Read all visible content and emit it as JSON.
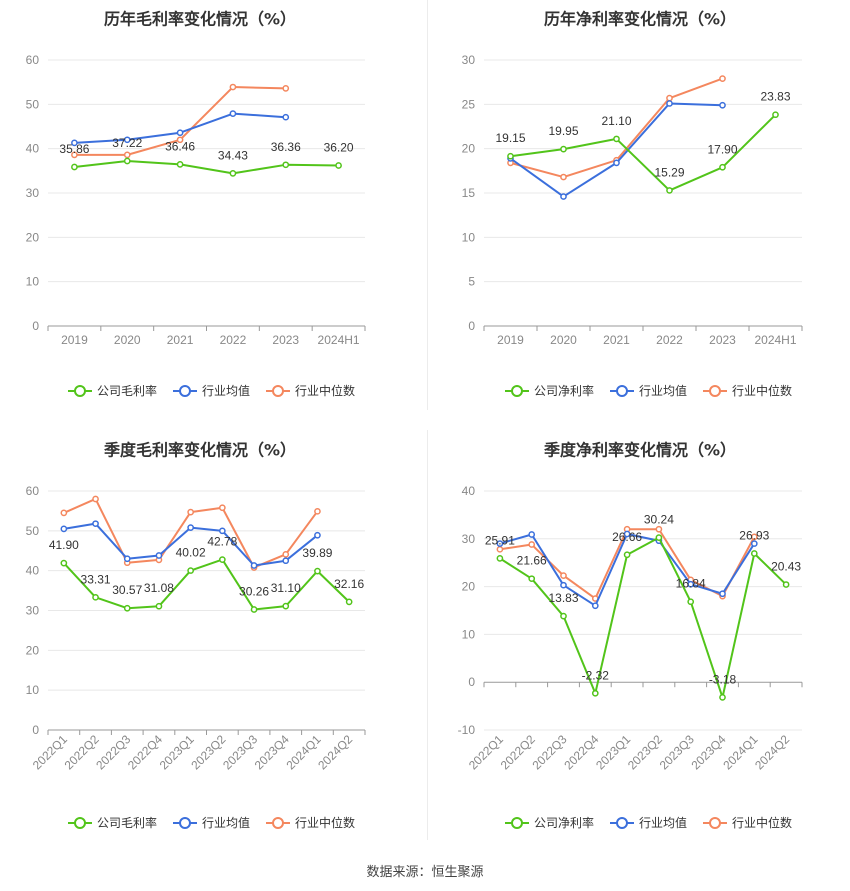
{
  "source_text": "数据来源：恒生聚源",
  "colors": {
    "company": "#52c41a",
    "avg": "#3b6fdc",
    "median": "#f4875e",
    "grid": "#e8e8e8",
    "axis": "#888888",
    "title": "#333333"
  },
  "chart_data": [
    {
      "type": "line",
      "title": "历年毛利率变化情况（%）",
      "categories": [
        "2019",
        "2020",
        "2021",
        "2022",
        "2023",
        "2024H1"
      ],
      "ylim": [
        0,
        60
      ],
      "yticks": [
        0,
        10,
        20,
        30,
        40,
        50,
        60
      ],
      "grid": true,
      "legend_position": "bottom",
      "series": [
        {
          "name": "公司毛利率",
          "key": "company",
          "values": [
            35.86,
            37.22,
            36.46,
            34.43,
            36.36,
            36.2
          ],
          "labels": [
            "35.86",
            "37.22",
            "36.46",
            "34.43",
            "36.36",
            "36.20"
          ]
        },
        {
          "name": "行业均值",
          "key": "avg",
          "values": [
            41.3,
            42.0,
            43.6,
            47.9,
            47.1,
            null
          ]
        },
        {
          "name": "行业中位数",
          "key": "median",
          "values": [
            38.6,
            38.6,
            42.0,
            53.9,
            53.6,
            null
          ]
        }
      ]
    },
    {
      "type": "line",
      "title": "历年净利率变化情况（%）",
      "categories": [
        "2019",
        "2020",
        "2021",
        "2022",
        "2023",
        "2024H1"
      ],
      "ylim": [
        0,
        30
      ],
      "yticks": [
        0,
        5,
        10,
        15,
        20,
        25,
        30
      ],
      "grid": true,
      "legend_position": "bottom",
      "series": [
        {
          "name": "公司净利率",
          "key": "company",
          "values": [
            19.15,
            19.95,
            21.1,
            15.29,
            17.9,
            23.83
          ],
          "labels": [
            "19.15",
            "19.95",
            "21.10",
            "15.29",
            "17.90",
            "23.83"
          ]
        },
        {
          "name": "行业均值",
          "key": "avg",
          "values": [
            18.9,
            14.6,
            18.4,
            25.1,
            24.9,
            null
          ]
        },
        {
          "name": "行业中位数",
          "key": "median",
          "values": [
            18.4,
            16.8,
            18.7,
            25.7,
            27.9,
            null
          ]
        }
      ]
    },
    {
      "type": "line",
      "title": "季度毛利率变化情况（%）",
      "categories": [
        "2022Q1",
        "2022Q2",
        "2022Q3",
        "2022Q4",
        "2023Q1",
        "2023Q2",
        "2023Q3",
        "2023Q4",
        "2024Q1",
        "2024Q2"
      ],
      "ylim": [
        0,
        60
      ],
      "yticks": [
        0,
        10,
        20,
        30,
        40,
        50,
        60
      ],
      "grid": true,
      "legend_position": "bottom",
      "rotate_xlabels": true,
      "series": [
        {
          "name": "公司毛利率",
          "key": "company",
          "values": [
            41.9,
            33.31,
            30.57,
            31.08,
            40.02,
            42.78,
            30.26,
            31.1,
            39.89,
            32.16
          ],
          "labels": [
            "41.90",
            "33.31",
            "30.57",
            "31.08",
            "40.02",
            "42.78",
            "30.26",
            "31.10",
            "39.89",
            "32.16"
          ]
        },
        {
          "name": "行业均值",
          "key": "avg",
          "values": [
            50.5,
            51.8,
            43.0,
            43.8,
            50.8,
            50.0,
            41.3,
            42.5,
            48.9,
            null
          ]
        },
        {
          "name": "行业中位数",
          "key": "median",
          "values": [
            54.5,
            58.0,
            42.0,
            42.7,
            54.7,
            55.8,
            40.8,
            44.1,
            54.9,
            null
          ]
        }
      ]
    },
    {
      "type": "line",
      "title": "季度净利率变化情况（%）",
      "categories": [
        "2022Q1",
        "2022Q2",
        "2022Q3",
        "2022Q4",
        "2023Q1",
        "2023Q2",
        "2023Q3",
        "2023Q4",
        "2024Q1",
        "2024Q2"
      ],
      "ylim": [
        -10,
        40
      ],
      "yticks": [
        -10,
        0,
        10,
        20,
        30,
        40
      ],
      "grid": true,
      "legend_position": "bottom",
      "rotate_xlabels": true,
      "series": [
        {
          "name": "公司净利率",
          "key": "company",
          "values": [
            25.91,
            21.66,
            13.83,
            -2.32,
            26.66,
            30.24,
            16.84,
            -3.18,
            26.93,
            20.43
          ],
          "labels": [
            "25.91",
            "21.66",
            "13.83",
            "-2.32",
            "26.66",
            "30.24",
            "16.84",
            "-3.18",
            "26.93",
            "20.43"
          ]
        },
        {
          "name": "行业均值",
          "key": "avg",
          "values": [
            29.0,
            30.9,
            20.3,
            16.0,
            31.0,
            29.6,
            20.5,
            18.5,
            29.0,
            null
          ]
        },
        {
          "name": "行业中位数",
          "key": "median",
          "values": [
            27.8,
            28.8,
            22.3,
            17.5,
            32.0,
            32.0,
            21.4,
            18.0,
            30.4,
            null
          ]
        }
      ]
    }
  ]
}
